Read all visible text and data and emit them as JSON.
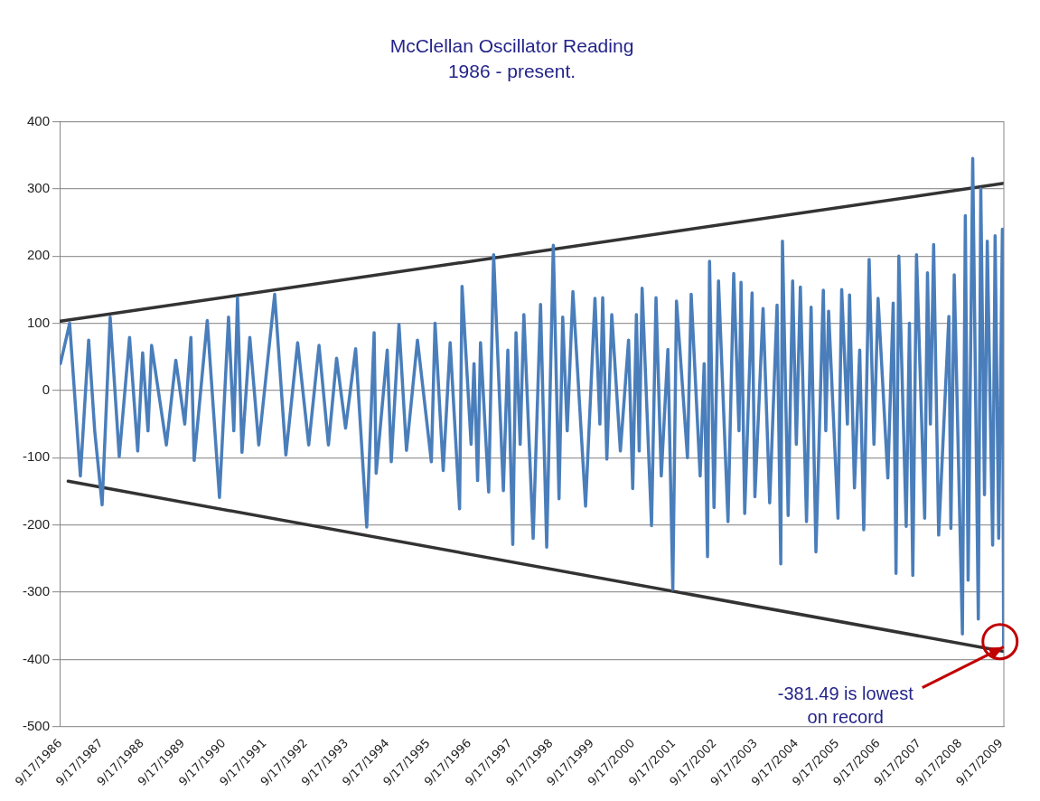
{
  "chart_data": {
    "type": "line",
    "title": "McClellan Oscillator Reading",
    "subtitle": "1986 - present.",
    "xlim": [
      "1986-09-10",
      "2009-10-10"
    ],
    "xticks": [
      {
        "value": "1986-09-17",
        "label": "9/17/1986"
      },
      {
        "value": "1987-09-17",
        "label": "9/17/1987"
      },
      {
        "value": "1988-09-17",
        "label": "9/17/1988"
      },
      {
        "value": "1989-09-17",
        "label": "9/17/1989"
      },
      {
        "value": "1990-09-17",
        "label": "9/17/1990"
      },
      {
        "value": "1991-09-17",
        "label": "9/17/1991"
      },
      {
        "value": "1992-09-17",
        "label": "9/17/1992"
      },
      {
        "value": "1993-09-17",
        "label": "9/17/1993"
      },
      {
        "value": "1994-09-17",
        "label": "9/17/1994"
      },
      {
        "value": "1995-09-17",
        "label": "9/17/1995"
      },
      {
        "value": "1996-09-17",
        "label": "9/17/1996"
      },
      {
        "value": "1997-09-17",
        "label": "9/17/1997"
      },
      {
        "value": "1998-09-17",
        "label": "9/17/1998"
      },
      {
        "value": "1999-09-17",
        "label": "9/17/1999"
      },
      {
        "value": "2000-09-17",
        "label": "9/17/2000"
      },
      {
        "value": "2001-09-17",
        "label": "9/17/2001"
      },
      {
        "value": "2002-09-17",
        "label": "9/17/2002"
      },
      {
        "value": "2003-09-17",
        "label": "9/17/2003"
      },
      {
        "value": "2004-09-17",
        "label": "9/17/2004"
      },
      {
        "value": "2005-09-17",
        "label": "9/17/2005"
      },
      {
        "value": "2006-09-17",
        "label": "9/17/2006"
      },
      {
        "value": "2007-09-17",
        "label": "9/17/2007"
      },
      {
        "value": "2008-09-17",
        "label": "9/17/2008"
      },
      {
        "value": "2009-09-17",
        "label": "9/17/2009"
      }
    ],
    "ylim": [
      -500,
      400
    ],
    "yticks": [
      -500,
      -400,
      -300,
      -200,
      -100,
      0,
      100,
      200,
      300,
      400
    ],
    "grid": "y",
    "legend": false,
    "marker": "none",
    "line_style": "solid",
    "series": [
      {
        "color": "#4a7ebb",
        "x": [
          "1986-09-17",
          "1986-12-08",
          "1987-03-14",
          "1987-05-27",
          "1987-07-20",
          "1987-09-24",
          "1987-12-05",
          "1988-02-24",
          "1988-05-26",
          "1988-08-07",
          "1988-09-20",
          "1988-11-07",
          "1988-12-09",
          "1989-04-20",
          "1989-07-13",
          "1989-10-01",
          "1989-11-25",
          "1989-12-24",
          "1990-04-20",
          "1990-08-07",
          "1990-10-27",
          "1990-12-13",
          "1991-01-15",
          "1991-02-24",
          "1991-05-05",
          "1991-07-24",
          "1991-12-13",
          "1992-03-22",
          "1992-07-05",
          "1992-10-12",
          "1993-01-12",
          "1993-04-06",
          "1993-06-18",
          "1993-09-06",
          "1993-12-05",
          "1994-03-14",
          "1994-05-19",
          "1994-06-06",
          "1994-09-13",
          "1994-10-19",
          "1994-12-27",
          "1995-03-04",
          "1995-06-10",
          "1995-10-12",
          "1995-11-14",
          "1996-01-26",
          "1996-03-28",
          "1996-06-20",
          "1996-07-12",
          "1996-10-01",
          "1996-10-27",
          "1996-11-28",
          "1996-12-24",
          "1997-03-07",
          "1997-04-20",
          "1997-07-16",
          "1997-08-25",
          "1997-10-08",
          "1997-11-06",
          "1997-12-13",
          "1998-01-15",
          "1998-04-08",
          "1998-06-13",
          "1998-08-07",
          "1998-10-05",
          "1998-11-25",
          "1998-12-28",
          "1999-02-06",
          "1999-03-29",
          "1999-07-20",
          "1999-10-12",
          "1999-11-25",
          "1999-12-20",
          "2000-01-26",
          "2000-03-10",
          "2000-05-26",
          "2000-08-07",
          "2000-09-13",
          "2000-10-16",
          "2000-11-10",
          "2000-12-06",
          "2001-02-28",
          "2001-04-09",
          "2001-05-26",
          "2001-07-24",
          "2001-09-06",
          "2001-10-09",
          "2002-01-15",
          "2002-02-17",
          "2002-05-08",
          "2002-06-13",
          "2002-07-13",
          "2002-07-31",
          "2002-09-09",
          "2002-10-19",
          "2003-01-12",
          "2003-03-04",
          "2003-04-20",
          "2003-05-08",
          "2003-06-10",
          "2003-08-15",
          "2003-09-09",
          "2003-11-21",
          "2004-01-19",
          "2004-03-25",
          "2004-04-27",
          "2004-05-12",
          "2004-07-02",
          "2004-08-11",
          "2004-09-13",
          "2004-10-19",
          "2004-12-13",
          "2005-01-23",
          "2005-03-07",
          "2005-05-12",
          "2005-06-03",
          "2005-06-28",
          "2005-09-20",
          "2005-10-23",
          "2005-12-13",
          "2006-01-01",
          "2006-02-14",
          "2006-04-02",
          "2006-05-08",
          "2006-06-25",
          "2006-08-07",
          "2006-09-13",
          "2006-12-09",
          "2007-01-26",
          "2007-02-20",
          "2007-03-17",
          "2007-05-22",
          "2007-06-20",
          "2007-07-20",
          "2007-08-22",
          "2007-11-03",
          "2007-11-28",
          "2007-12-24",
          "2008-01-22",
          "2008-03-07",
          "2008-06-06",
          "2008-06-24",
          "2008-07-24",
          "2008-10-05",
          "2008-10-31",
          "2008-11-25",
          "2009-01-05",
          "2009-02-24",
          "2009-03-18",
          "2009-04-20",
          "2009-05-15",
          "2009-07-02",
          "2009-07-24",
          "2009-08-25",
          "2009-09-27",
          "2009-10-08"
        ],
        "values": [
          40,
          100,
          -127,
          75,
          -60,
          -170,
          109,
          -98,
          79,
          -90,
          56,
          -60,
          67,
          -81,
          45,
          -50,
          79,
          -104,
          104,
          -159,
          109,
          -60,
          138,
          -92,
          79,
          -81,
          143,
          -96,
          71,
          -81,
          67,
          -81,
          48,
          -56,
          62,
          -203,
          86,
          -123,
          60,
          -106,
          98,
          -89,
          75,
          -106,
          100,
          -119,
          71,
          -176,
          155,
          -80,
          40,
          -134,
          71,
          -151,
          202,
          -149,
          60,
          -229,
          86,
          -80,
          113,
          -220,
          128,
          -233,
          216,
          -161,
          109,
          -60,
          147,
          -172,
          137,
          -50,
          138,
          -102,
          113,
          -90,
          75,
          -146,
          113,
          -90,
          152,
          -201,
          138,
          -127,
          61,
          -296,
          133,
          -100,
          143,
          -127,
          40,
          -247,
          192,
          -174,
          163,
          -195,
          174,
          -60,
          161,
          -183,
          145,
          -158,
          122,
          -167,
          127,
          -258,
          222,
          -186,
          163,
          -80,
          154,
          -195,
          124,
          -240,
          149,
          -60,
          118,
          -190,
          150,
          -50,
          142,
          -145,
          60,
          -207,
          195,
          -80,
          137,
          -130,
          130,
          -272,
          200,
          -202,
          100,
          -275,
          202,
          -190,
          175,
          -50,
          217,
          -215,
          110,
          -205,
          172,
          -362,
          260,
          -282,
          345,
          -340,
          300,
          -155,
          222,
          -230,
          230,
          -220,
          240,
          -381.49
        ]
      },
      {
        "type": "line",
        "color": "#333333",
        "x": [
          "1986-09-17",
          "2009-10-10"
        ],
        "values": [
          103,
          308
        ]
      },
      {
        "type": "line",
        "color": "#333333",
        "x": [
          "1986-11-25",
          "2009-10-10"
        ],
        "values": [
          -135,
          -388
        ]
      }
    ],
    "annotations": [
      {
        "text": "-381.49 is lowest on record",
        "x": "2009-10-08",
        "y": -381.49
      }
    ]
  }
}
